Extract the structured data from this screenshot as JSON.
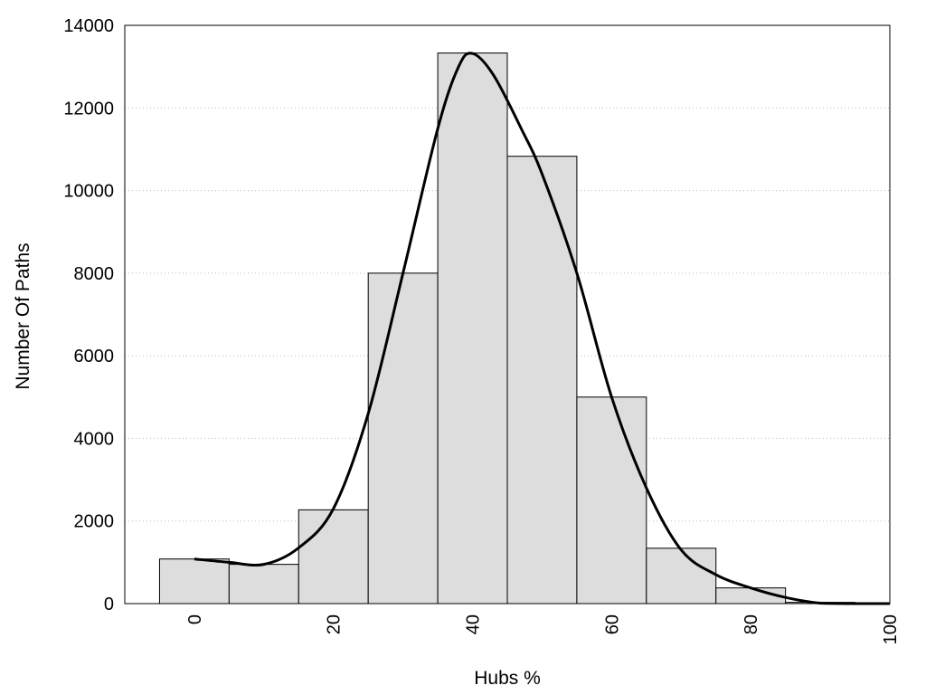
{
  "chart_data": {
    "type": "bar",
    "xlabel": "Hubs %",
    "ylabel": "Number Of Paths",
    "xlim": [
      -10,
      100
    ],
    "ylim": [
      0,
      14000
    ],
    "x_ticks": [
      "0",
      "20",
      "40",
      "60",
      "80",
      "100"
    ],
    "y_ticks": [
      "0",
      "2000",
      "4000",
      "6000",
      "8000",
      "10000",
      "12000",
      "14000"
    ],
    "grid": "horizontal-dotted",
    "bar_color": "#dddddd",
    "line_color": "#000000",
    "bars": [
      {
        "x": 0,
        "value": 1080
      },
      {
        "x": 10,
        "value": 950
      },
      {
        "x": 20,
        "value": 2270
      },
      {
        "x": 30,
        "value": 8000
      },
      {
        "x": 40,
        "value": 13330
      },
      {
        "x": 50,
        "value": 10830
      },
      {
        "x": 60,
        "value": 5000
      },
      {
        "x": 70,
        "value": 1340
      },
      {
        "x": 80,
        "value": 380
      },
      {
        "x": 90,
        "value": 30
      }
    ],
    "bin_width": 10,
    "density_curve": [
      {
        "x": 0,
        "y": 1080
      },
      {
        "x": 5,
        "y": 1000
      },
      {
        "x": 10,
        "y": 950
      },
      {
        "x": 15,
        "y": 1350
      },
      {
        "x": 20,
        "y": 2300
      },
      {
        "x": 25,
        "y": 4600
      },
      {
        "x": 30,
        "y": 8000
      },
      {
        "x": 35,
        "y": 11500
      },
      {
        "x": 38,
        "y": 13000
      },
      {
        "x": 40,
        "y": 13320
      },
      {
        "x": 43,
        "y": 12800
      },
      {
        "x": 47,
        "y": 11500
      },
      {
        "x": 50,
        "y": 10400
      },
      {
        "x": 55,
        "y": 8000
      },
      {
        "x": 60,
        "y": 5000
      },
      {
        "x": 65,
        "y": 2800
      },
      {
        "x": 70,
        "y": 1300
      },
      {
        "x": 75,
        "y": 700
      },
      {
        "x": 80,
        "y": 380
      },
      {
        "x": 85,
        "y": 150
      },
      {
        "x": 90,
        "y": 10
      },
      {
        "x": 95,
        "y": 0
      },
      {
        "x": 100,
        "y": 0
      }
    ]
  }
}
